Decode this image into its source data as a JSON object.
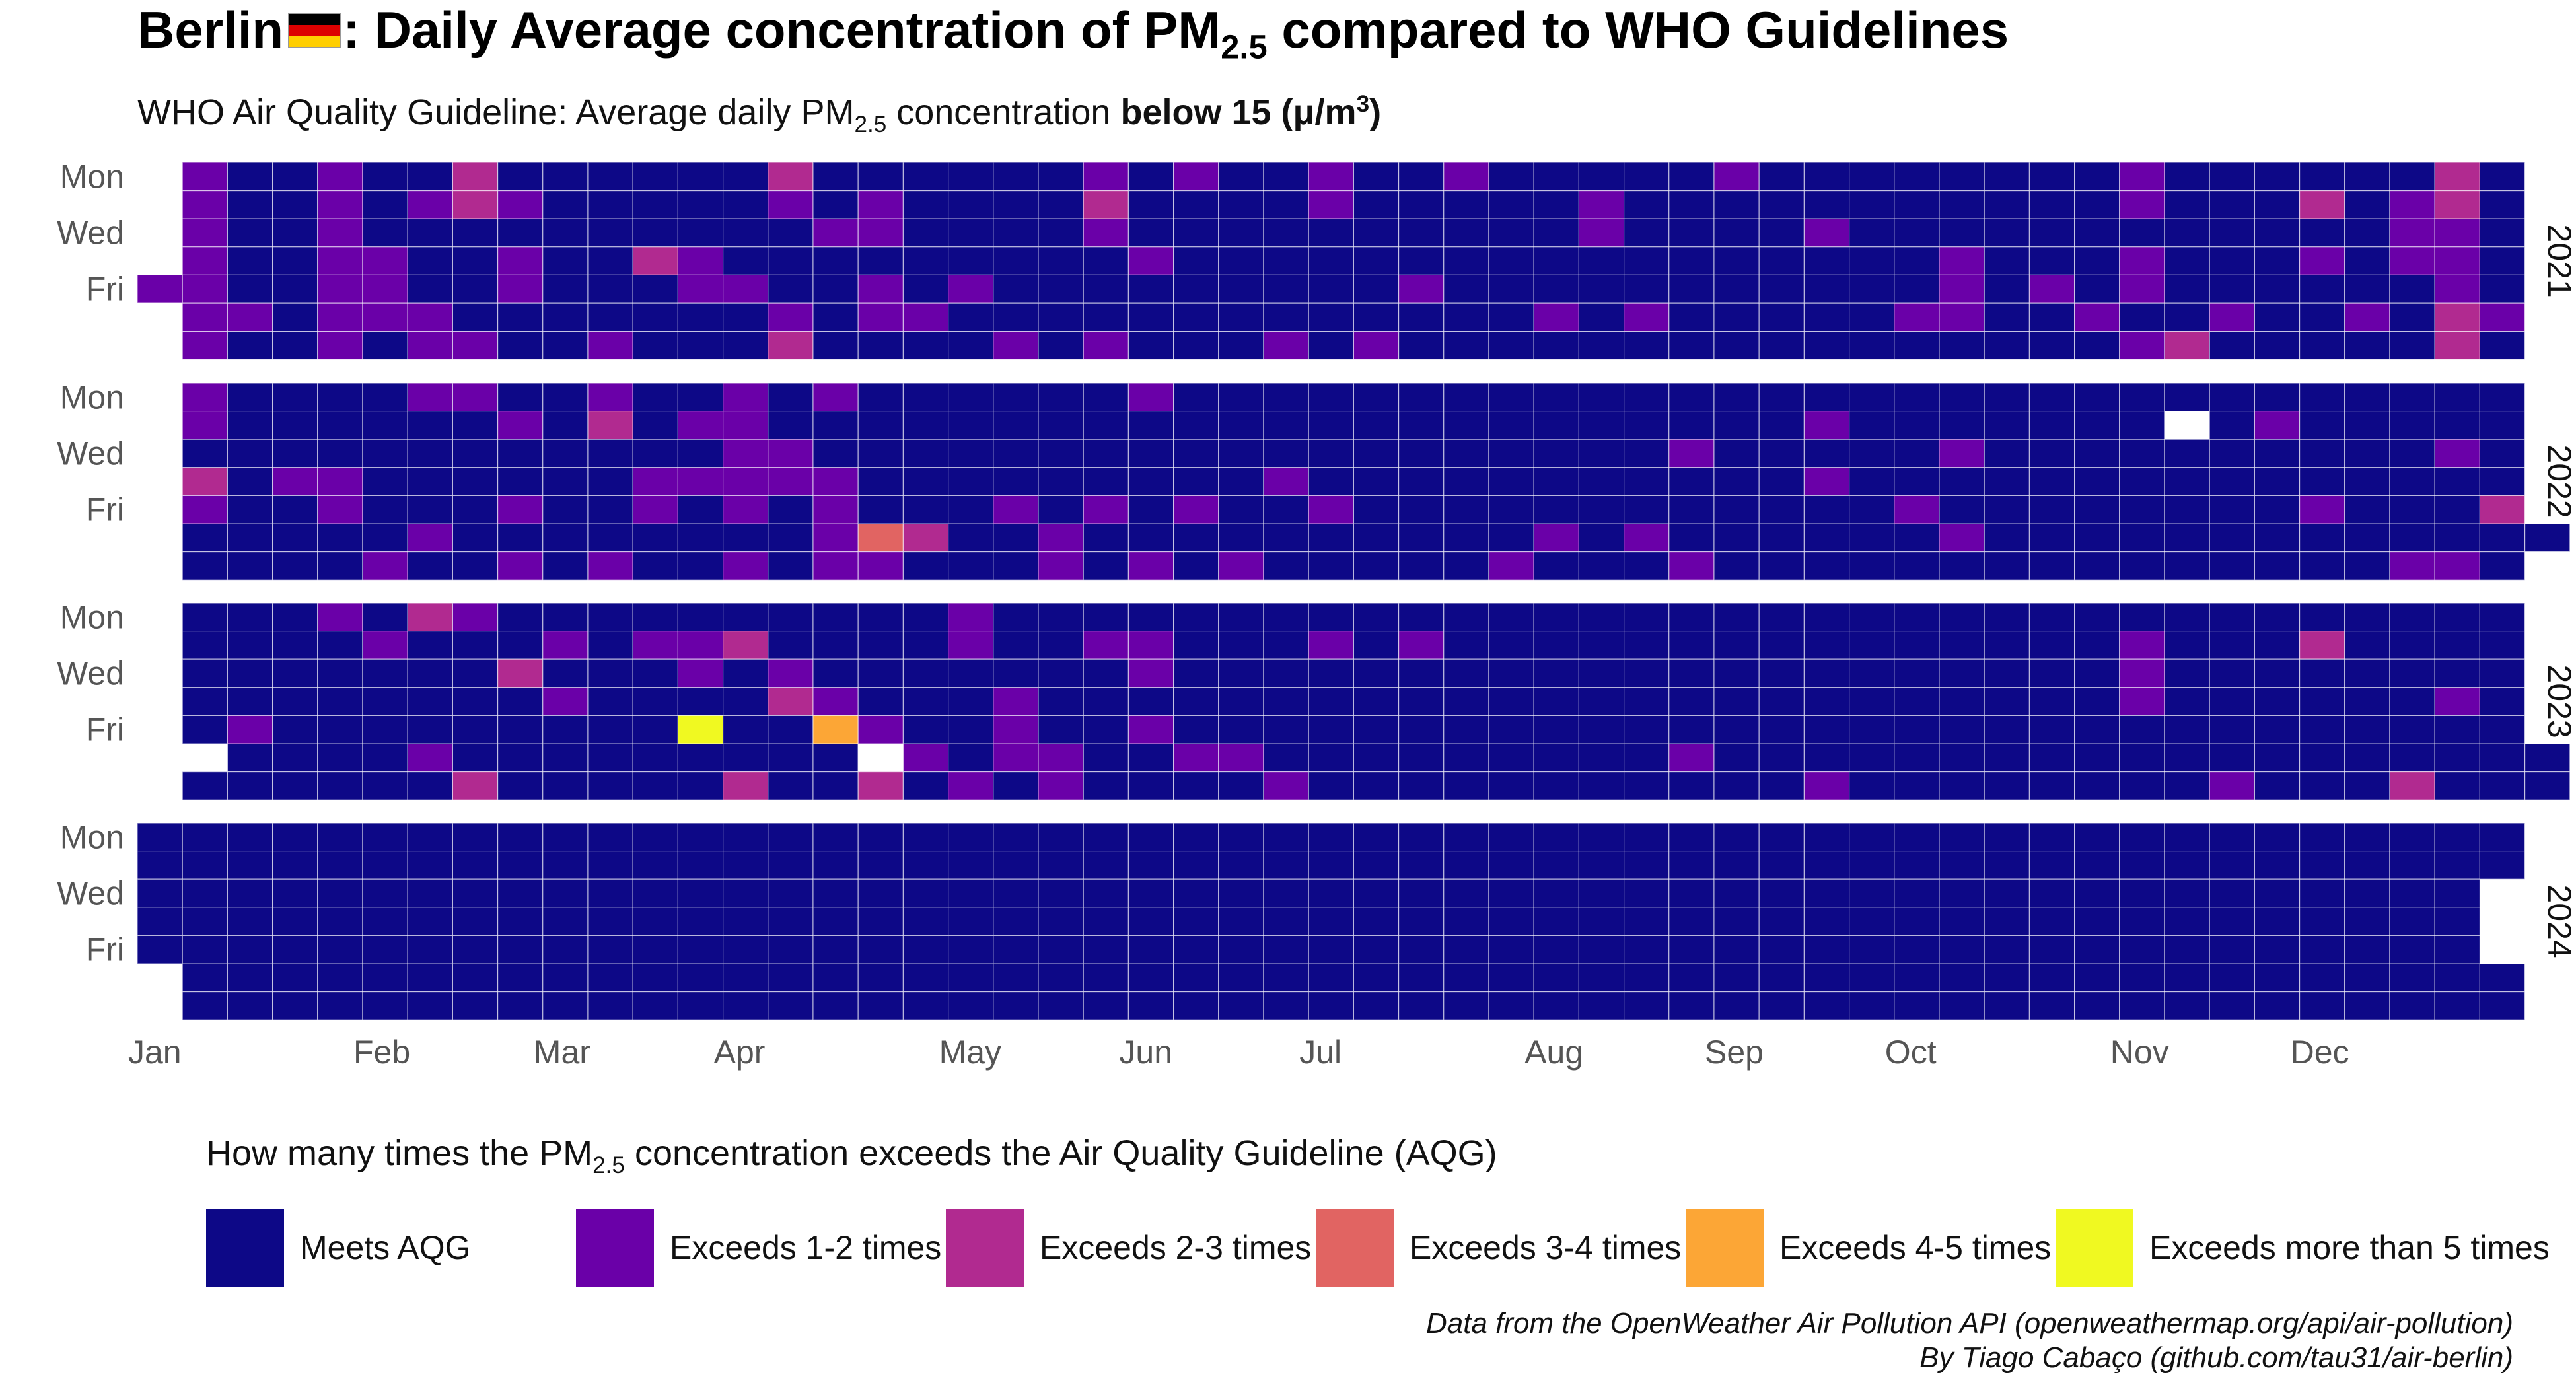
{
  "title": {
    "prefix": "Berlin",
    "flag_icon": "germany-flag-icon",
    "middle": ": Daily Average concentration of PM",
    "sub": "2.5",
    "suffix": " compared to WHO Guidelines"
  },
  "subtitle": {
    "prefix": "WHO Air Quality Guideline: Average daily PM",
    "sub": "2.5",
    "middle": " concentration ",
    "bold": "below 15 (μ/m",
    "sup": "3",
    "bold_end": ")"
  },
  "legend": {
    "title_prefix": "How many times the PM",
    "title_sub": "2.5",
    "title_suffix": " concentration exceeds the Air Quality Guideline (AQG)",
    "items": [
      {
        "label": "Meets AQG",
        "color": "#0d0887"
      },
      {
        "label": "Exceeds 1-2 times",
        "color": "#6a00a8"
      },
      {
        "label": "Exceeds 2-3 times",
        "color": "#b12a90"
      },
      {
        "label": "Exceeds 3-4 times",
        "color": "#e16462"
      },
      {
        "label": "Exceeds 4-5 times",
        "color": "#fca636"
      },
      {
        "label": "Exceeds more than 5 times",
        "color": "#f0f921"
      }
    ]
  },
  "caption": {
    "line1": "Data from the OpenWeather Air Pollution API (openweathermap.org/api/air-pollution)",
    "line2": "By Tiago Cabaço (github.com/tau31/air-berlin)"
  },
  "chart_data": {
    "type": "heatmap",
    "layout": "calendar",
    "facets": [
      "2021",
      "2022",
      "2023",
      "2024"
    ],
    "y_tick_labels": [
      "Mon",
      "Wed",
      "Fri"
    ],
    "x_tick_labels": [
      "Jan",
      "Feb",
      "Mar",
      "Apr",
      "May",
      "Jun",
      "Jul",
      "Aug",
      "Sep",
      "Oct",
      "Nov",
      "Dec"
    ],
    "levels": [
      "Meets AQG",
      "Exceeds 1-2 times",
      "Exceeds 2-3 times",
      "Exceeds 3-4 times",
      "Exceeds 4-5 times",
      "Exceeds more than 5 times"
    ],
    "level_codes": "0 = Meets AQG, 1 = Exceeds 1-2 times, 2 = Exceeds 2-3 times, 3 = Exceeds 3-4 times, 4 = Exceeds 4-5 times, 5 = Exceeds more than 5 times, -1 = missing",
    "days": {
      "2021": "11111111100000000000001111111100001111010000122000000101100000000100000000002000000110000001122100000001001001101100000000000010100000000000001121000000010001000000000000100000001100001000000000001001000000000001000000000110010000000000000001000000000000000100000000010000001000011000000000000011000000011101102000001000000000000000020101000000000111022221111000000010000100100001111001101011110011102200000",
      "2022": "00110210000000000001000000110100000101000000100000101001000000001120000000011000101001111110000110111001131000002000000000000000000011100000000000101100000000001010000000000100000001000000000000000000000010000010000000000000100000001001000000000000000000010100000000000000110001000000000000000000000000000000000-0000000000000100000000010000000010000001001000000002010000200002000000-01110010000000000010000000010000000",
      "2023": "00000000000010000000001000000010001020000021000000002000001010000000000010000001105020200000001200000014-20000110000000111000100001111000000001000000110110000001000000010000000010000000000000100000000000000000000000000000000000000100000000000000000000010000000000000000000000000000000000000000000000000011100000000010000000000000002000000000002000000000010000000000000000000000100000000000000000000000000000000010000000000000000000000000000000000000000000000000000000000000000000",
      "2024": "000000000000000000000000000000000000000000000000000000000000000000000000000000000000000000000000000000000000000000000000000000000000000000000000000000000000000000000000000000000000000000000000000000000000000000000000000000000000000000000000000000000000000000000000000000000000000000000000000000000000000000000000000000000000000000000000000000000000000000000000000000000000000000000000000000000000"
    }
  }
}
